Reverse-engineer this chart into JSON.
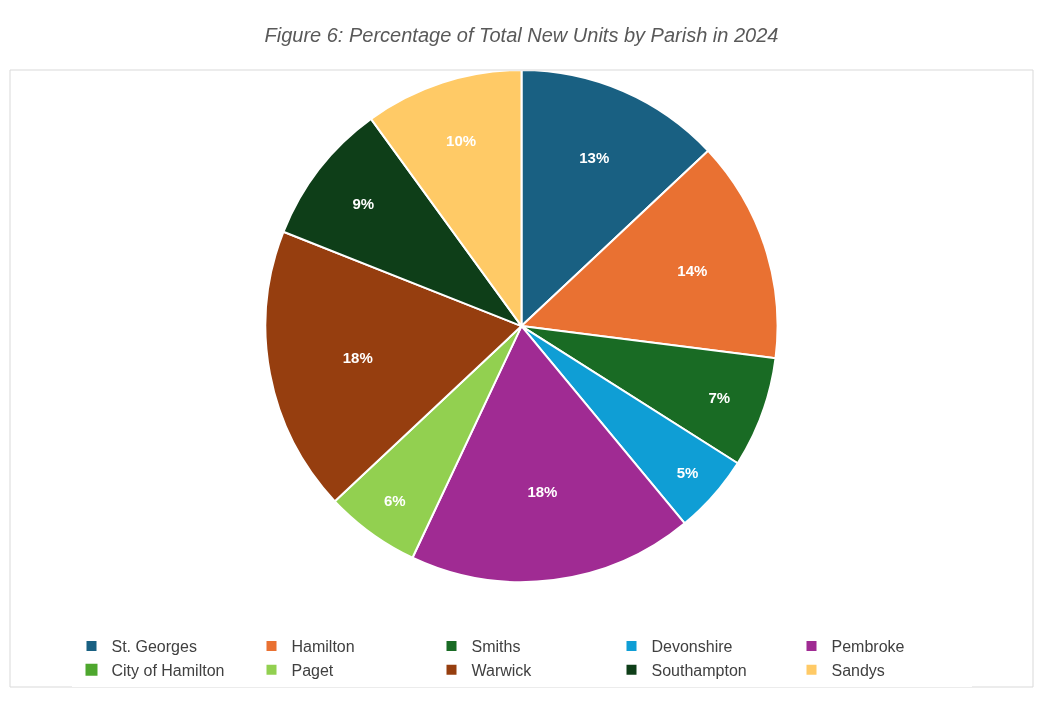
{
  "chart_data": {
    "type": "pie",
    "title": "Figure 6: Percentage of Total New Units by Parish in 2024",
    "categories": [
      "St. Georges",
      "Hamilton",
      "Smiths",
      "Devonshire",
      "Pembroke",
      "City of Hamilton",
      "Paget",
      "Warwick",
      "Southampton",
      "Sandys"
    ],
    "values": [
      13,
      14,
      7,
      5,
      18,
      0,
      6,
      18,
      9,
      10
    ],
    "value_labels": [
      "13%",
      "14%",
      "7%",
      "5%",
      "18%",
      null,
      "6%",
      "18%",
      "9%",
      "10%"
    ],
    "colors": [
      "#196082",
      "#e97132",
      "#196b24",
      "#0f9ed5",
      "#a02b93",
      "#4ea72e",
      "#92d050",
      "#963e0f",
      "#0e3e18",
      "#ffca66"
    ],
    "legend": "bottom"
  }
}
